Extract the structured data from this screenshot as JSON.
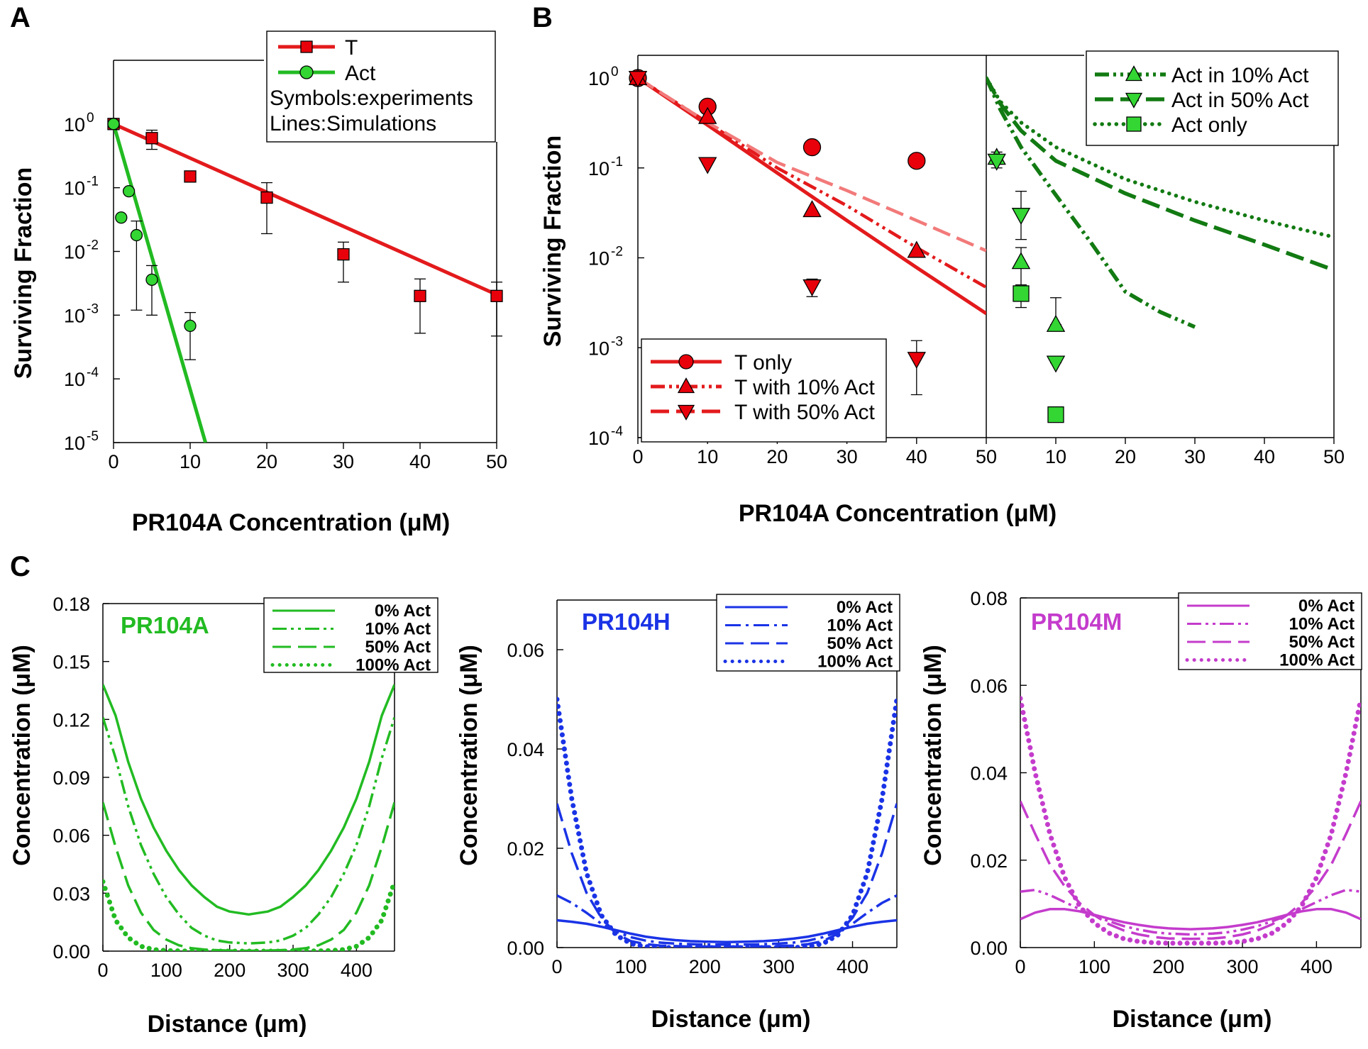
{
  "panel_labels": [
    "A",
    "B",
    "C"
  ],
  "colors": {
    "red": "#e31a1c",
    "red_fill": "#e8000b",
    "light_red": "#f27a7a",
    "green": "#22bb22",
    "green_marker": "#33d633",
    "dark_green": "#127a12",
    "blue": "#1a33e6",
    "magenta": "#c43ccc",
    "axis": "#000000"
  },
  "chart_data": [
    {
      "id": "A",
      "type": "scatter",
      "title": "",
      "xlabel": "PR104A Concentration (μM)",
      "ylabel": "Surviving Fraction",
      "yscale": "log",
      "xlim": [
        0,
        50
      ],
      "ylim": [
        1e-05,
        10
      ],
      "x_ticks": [
        "0",
        "10",
        "20",
        "30",
        "40",
        "50"
      ],
      "y_ticks": [
        {
          "base": "10",
          "exp": "0"
        },
        {
          "base": "10",
          "exp": "-1"
        },
        {
          "base": "10",
          "exp": "-2"
        },
        {
          "base": "10",
          "exp": "-3"
        },
        {
          "base": "10",
          "exp": "-4"
        },
        {
          "base": "10",
          "exp": "-5"
        }
      ],
      "series": [
        {
          "name": "T",
          "kind": "points",
          "marker": "square",
          "x": [
            0,
            5,
            10,
            20,
            30,
            40,
            50
          ],
          "y": [
            1.0,
            0.6,
            0.15,
            0.07,
            0.009,
            0.002,
            0.002
          ],
          "err_up": [
            1.0,
            0.8,
            0.17,
            0.12,
            0.014,
            0.0037,
            0.0033
          ],
          "err_low": [
            1.0,
            0.4,
            0.13,
            0.019,
            0.0033,
            0.00052,
            0.00047
          ]
        },
        {
          "name": "Act",
          "kind": "points",
          "marker": "circle",
          "x": [
            0,
            1,
            2,
            3,
            5,
            10
          ],
          "y": [
            1.0,
            0.034,
            0.088,
            0.018,
            0.0036,
            0.00068
          ],
          "err_up": [
            1.0,
            0.034,
            0.088,
            0.03,
            0.006,
            0.0011
          ],
          "err_low": [
            1.0,
            0.034,
            0.088,
            0.0012,
            0.001,
            0.0002
          ]
        },
        {
          "name": "T simulation",
          "kind": "line",
          "x": [
            0,
            50
          ],
          "y": [
            1.0,
            0.0021
          ]
        },
        {
          "name": "Act simulation",
          "kind": "line",
          "x": [
            0,
            12
          ],
          "y": [
            1.0,
            1e-05
          ]
        }
      ],
      "legend": {
        "entries": [
          "T",
          "Act"
        ],
        "notes": [
          "Symbols:experiments",
          "Lines:Simulations"
        ],
        "position": "top-right"
      }
    },
    {
      "id": "B",
      "type": "scatter",
      "title": "",
      "xlabel": "PR104A Concentration (μM)",
      "ylabel": "Surviving Fraction",
      "yscale": "log",
      "ylim": [
        0.0001,
        1.5
      ],
      "y_ticks": [
        {
          "base": "10",
          "exp": "0"
        },
        {
          "base": "10",
          "exp": "-1"
        },
        {
          "base": "10",
          "exp": "-2"
        },
        {
          "base": "10",
          "exp": "-3"
        },
        {
          "base": "10",
          "exp": "-4"
        }
      ],
      "left": {
        "xlim": [
          0,
          50
        ],
        "x_ticks": [
          "0",
          "10",
          "20",
          "30",
          "40",
          "50"
        ],
        "series": [
          {
            "name": "T only",
            "kind": "points",
            "marker": "circle",
            "x": [
              0,
              10,
              25,
              40
            ],
            "y": [
              1.0,
              0.48,
              0.17,
              0.12
            ],
            "err_up": [
              1.0,
              0.48,
              0.17,
              0.12
            ],
            "err_low": [
              1.0,
              0.48,
              0.17,
              0.12
            ]
          },
          {
            "name": "T with 10% Act",
            "kind": "points",
            "marker": "triangle-up",
            "x": [
              0,
              10,
              25,
              40
            ],
            "y": [
              1.0,
              0.37,
              0.034,
              0.012
            ],
            "err_up": [
              1.0,
              0.37,
              0.034,
              0.012
            ],
            "err_low": [
              1.0,
              0.37,
              0.034,
              0.012
            ]
          },
          {
            "name": "T with 50% Act",
            "kind": "points",
            "marker": "triangle-down",
            "x": [
              0,
              10,
              25,
              40
            ],
            "y": [
              1.0,
              0.11,
              0.0048,
              0.00075
            ],
            "err_up": [
              1.0,
              0.11,
              0.0058,
              0.0012
            ],
            "err_low": [
              1.0,
              0.11,
              0.0037,
              0.0003
            ]
          },
          {
            "name": "T only simulation",
            "kind": "line",
            "dash": "solid",
            "x": [
              0,
              10,
              20,
              30,
              40,
              50
            ],
            "y": [
              1.0,
              0.3,
              0.088,
              0.026,
              0.0078,
              0.0024
            ]
          },
          {
            "name": "T with 10% Act simulation",
            "kind": "line",
            "dash": "dash-dot-dot",
            "x": [
              0,
              10,
              20,
              30,
              40,
              50
            ],
            "y": [
              1.0,
              0.32,
              0.1,
              0.038,
              0.013,
              0.0047
            ]
          },
          {
            "name": "T with 50% Act simulation",
            "kind": "line",
            "dash": "dashed",
            "x": [
              0,
              10,
              20,
              30,
              40,
              50
            ],
            "y": [
              1.0,
              0.32,
              0.115,
              0.056,
              0.026,
              0.012
            ]
          }
        ],
        "legend": {
          "entries": [
            "T only",
            "T with 10% Act",
            "T with 50% Act"
          ],
          "position": "bottom-left"
        }
      },
      "right": {
        "xlim": [
          0,
          50
        ],
        "x_ticks": [
          "0",
          "10",
          "20",
          "30",
          "40",
          "50"
        ],
        "series": [
          {
            "name": "Act in 10% Act",
            "kind": "points",
            "marker": "triangle-up",
            "x": [
              1.5,
              5,
              10
            ],
            "y": [
              0.13,
              0.009,
              0.0018
            ],
            "err_up": [
              0.15,
              0.013,
              0.0036
            ],
            "err_low": [
              0.11,
              0.005,
              0.0018
            ]
          },
          {
            "name": "Act in 50% Act",
            "kind": "points",
            "marker": "triangle-down",
            "x": [
              1.5,
              5,
              10
            ],
            "y": [
              0.12,
              0.03,
              0.00068
            ],
            "err_up": [
              0.14,
              0.055,
              0.0008
            ],
            "err_low": [
              0.1,
              0.016,
              0.00068
            ]
          },
          {
            "name": "Act only",
            "kind": "points",
            "marker": "square",
            "x": [
              5,
              10
            ],
            "y": [
              0.004,
              0.00018
            ],
            "err_up": [
              0.0045,
              0.00018
            ],
            "err_low": [
              0.0028,
              0.00018
            ]
          },
          {
            "name": "Act in 10% Act simulation",
            "kind": "line",
            "dash": "dash-dot-dot",
            "x": [
              0,
              2,
              5,
              10,
              15,
              20,
              25,
              30
            ],
            "y": [
              1.0,
              0.45,
              0.17,
              0.05,
              0.015,
              0.0042,
              0.0025,
              0.0017
            ]
          },
          {
            "name": "Act in 50% Act simulation",
            "kind": "line",
            "dash": "dashed",
            "x": [
              0,
              2,
              5,
              10,
              20,
              30,
              40,
              50
            ],
            "y": [
              1.0,
              0.52,
              0.26,
              0.12,
              0.052,
              0.026,
              0.014,
              0.0073
            ]
          },
          {
            "name": "Act only simulation",
            "kind": "line",
            "dash": "dotted",
            "x": [
              0,
              2,
              5,
              10,
              20,
              30,
              40,
              50
            ],
            "y": [
              1.0,
              0.55,
              0.32,
              0.17,
              0.075,
              0.042,
              0.026,
              0.017
            ]
          }
        ],
        "legend": {
          "entries": [
            "Act in 10% Act",
            "Act in 50% Act",
            "Act only"
          ],
          "position": "top-right"
        }
      }
    },
    {
      "id": "C1",
      "type": "line",
      "title": "PR104A",
      "xlabel": "Distance (μm)",
      "ylabel": "Concentration (μM)",
      "xlim": [
        0,
        460
      ],
      "ylim": [
        0,
        0.18
      ],
      "x_ticks": [
        "0",
        "100",
        "200",
        "300",
        "400"
      ],
      "y_ticks": [
        "0.18",
        "0.15",
        "0.12",
        "0.09",
        "0.06",
        "0.03",
        "0.00"
      ],
      "series": [
        {
          "name": "0% Act",
          "dash": "solid",
          "x": [
            0,
            20,
            40,
            60,
            80,
            100,
            120,
            140,
            160,
            180,
            200,
            230
          ],
          "y": [
            0.138,
            0.122,
            0.098,
            0.079,
            0.064,
            0.052,
            0.042,
            0.034,
            0.028,
            0.023,
            0.0205,
            0.019
          ]
        },
        {
          "name": "10% Act",
          "dash": "dash-dot-dot",
          "x": [
            0,
            20,
            40,
            60,
            80,
            100,
            120,
            140,
            160,
            180,
            200,
            230
          ],
          "y": [
            0.121,
            0.1,
            0.075,
            0.055,
            0.04,
            0.028,
            0.019,
            0.012,
            0.008,
            0.0055,
            0.0045,
            0.004
          ]
        },
        {
          "name": "50% Act",
          "dash": "dashed",
          "x": [
            0,
            20,
            40,
            60,
            80,
            100,
            120,
            140,
            160,
            180,
            200,
            230
          ],
          "y": [
            0.077,
            0.054,
            0.034,
            0.02,
            0.011,
            0.006,
            0.003,
            0.0015,
            0.0008,
            0.0005,
            0.0003,
            0.0002
          ]
        },
        {
          "name": "100% Act",
          "dash": "dotted",
          "x": [
            0,
            20,
            40,
            60,
            80,
            100,
            120,
            140,
            160,
            180,
            200,
            230
          ],
          "y": [
            0.036,
            0.016,
            0.007,
            0.0025,
            0.0008,
            0.0003,
            0.0001,
            0.0,
            0.0,
            0.0,
            0.0,
            0.0
          ]
        }
      ],
      "legend": {
        "entries": [
          "0% Act",
          "10% Act",
          "50% Act",
          "100% Act"
        ],
        "position": "top-right"
      }
    },
    {
      "id": "C2",
      "type": "line",
      "title": "PR104H",
      "xlabel": "Distance (μm)",
      "ylabel": "Concentration (μM)",
      "xlim": [
        0,
        460
      ],
      "ylim": [
        0,
        0.07
      ],
      "x_ticks": [
        "0",
        "100",
        "200",
        "300",
        "400"
      ],
      "y_ticks": [
        "0.06",
        "0.04",
        "0.02",
        "0.00"
      ],
      "series": [
        {
          "name": "0% Act",
          "dash": "solid",
          "x": [
            0,
            20,
            40,
            60,
            80,
            100,
            120,
            140,
            160,
            180,
            200,
            230
          ],
          "y": [
            0.0055,
            0.0052,
            0.0048,
            0.0042,
            0.0035,
            0.0028,
            0.0022,
            0.0018,
            0.0015,
            0.0013,
            0.0012,
            0.0011
          ]
        },
        {
          "name": "10% Act",
          "dash": "dash-dot",
          "x": [
            0,
            20,
            40,
            60,
            80,
            100,
            120,
            140,
            160,
            180,
            200,
            230
          ],
          "y": [
            0.0105,
            0.009,
            0.007,
            0.0048,
            0.0032,
            0.0021,
            0.0014,
            0.001,
            0.0008,
            0.0007,
            0.0006,
            0.0006
          ]
        },
        {
          "name": "50% Act",
          "dash": "dashed",
          "x": [
            0,
            20,
            40,
            60,
            80,
            100,
            120,
            140,
            160,
            180,
            200,
            230
          ],
          "y": [
            0.029,
            0.019,
            0.011,
            0.006,
            0.0028,
            0.0013,
            0.0007,
            0.0004,
            0.0003,
            0.0002,
            0.0002,
            0.0002
          ]
        },
        {
          "name": "100% Act",
          "dash": "dotted",
          "x": [
            0,
            20,
            40,
            60,
            80,
            100,
            120,
            140,
            160,
            180,
            200,
            230
          ],
          "y": [
            0.05,
            0.03,
            0.015,
            0.0065,
            0.0025,
            0.0008,
            0.0002,
            0.0,
            0.0,
            0.0,
            0.0,
            0.0
          ]
        }
      ],
      "legend": {
        "entries": [
          "0% Act",
          "10% Act",
          "50% Act",
          "100% Act"
        ],
        "position": "top-right"
      }
    },
    {
      "id": "C3",
      "type": "line",
      "title": "PR104M",
      "xlabel": "Distance (μm)",
      "ylabel": "Concentration (μM)",
      "xlim": [
        0,
        460
      ],
      "ylim": [
        0,
        0.08
      ],
      "x_ticks": [
        "0",
        "100",
        "200",
        "300",
        "400"
      ],
      "y_ticks": [
        "0.08",
        "0.06",
        "0.04",
        "0.02",
        "0.00"
      ],
      "series": [
        {
          "name": "0% Act",
          "dash": "solid",
          "x": [
            0,
            20,
            40,
            60,
            80,
            100,
            120,
            140,
            160,
            180,
            200,
            230
          ],
          "y": [
            0.0065,
            0.008,
            0.0088,
            0.0088,
            0.0083,
            0.0075,
            0.0066,
            0.0058,
            0.0052,
            0.0047,
            0.0044,
            0.0042
          ]
        },
        {
          "name": "10% Act",
          "dash": "dash-dot-dot",
          "x": [
            0,
            20,
            40,
            60,
            80,
            100,
            120,
            140,
            160,
            180,
            200,
            230
          ],
          "y": [
            0.0128,
            0.0132,
            0.012,
            0.0104,
            0.0088,
            0.0073,
            0.006,
            0.0049,
            0.0041,
            0.0035,
            0.0032,
            0.003
          ]
        },
        {
          "name": "50% Act",
          "dash": "dashed",
          "x": [
            0,
            20,
            40,
            60,
            80,
            100,
            120,
            140,
            160,
            180,
            200,
            230
          ],
          "y": [
            0.0335,
            0.026,
            0.019,
            0.014,
            0.0102,
            0.0074,
            0.0053,
            0.0039,
            0.003,
            0.0024,
            0.0021,
            0.002
          ]
        },
        {
          "name": "100% Act",
          "dash": "dotted",
          "x": [
            0,
            20,
            40,
            60,
            80,
            100,
            120,
            140,
            160,
            180,
            200,
            230
          ],
          "y": [
            0.057,
            0.04,
            0.026,
            0.016,
            0.0095,
            0.0056,
            0.0033,
            0.002,
            0.0014,
            0.0011,
            0.001,
            0.001
          ]
        }
      ],
      "legend": {
        "entries": [
          "0% Act",
          "10% Act",
          "50% Act",
          "100% Act"
        ],
        "position": "top-right"
      }
    }
  ]
}
